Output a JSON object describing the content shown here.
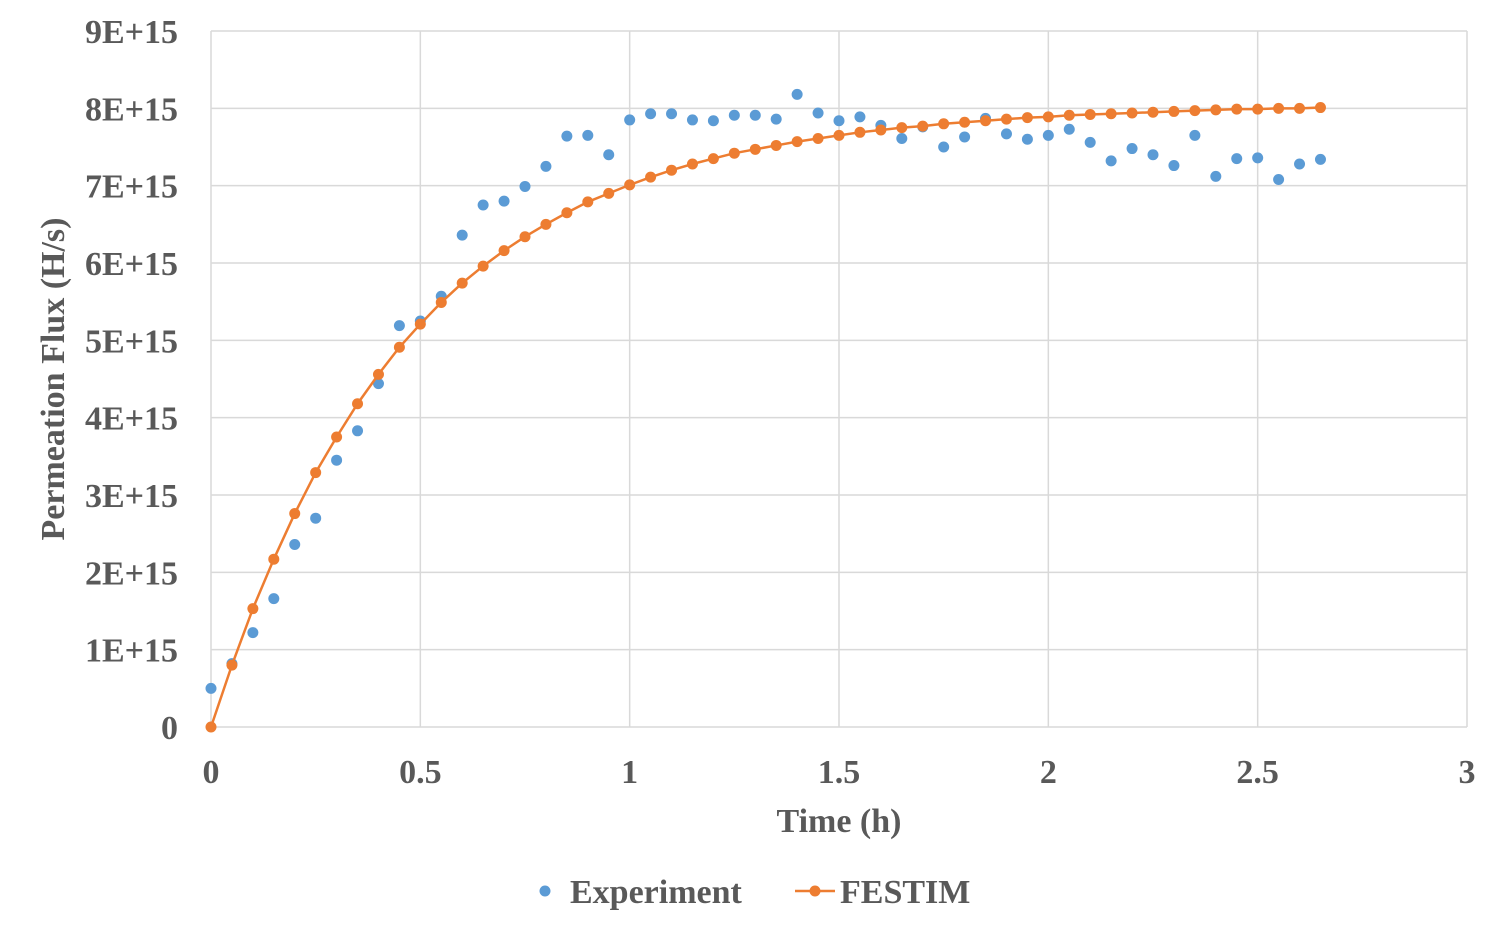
{
  "chart_data": {
    "type": "scatter",
    "title": "",
    "xlabel": "Time (h)",
    "ylabel": "Permeation Flux (H/s)",
    "xlim": [
      0,
      3
    ],
    "ylim": [
      0,
      9000000000000000.0
    ],
    "xticks": [
      0,
      0.5,
      1,
      1.5,
      2,
      2.5,
      3
    ],
    "xtick_labels": [
      "0",
      "0.5",
      "1",
      "1.5",
      "2",
      "2.5",
      "3"
    ],
    "yticks": [
      0,
      1000000000000000.0,
      2000000000000000.0,
      3000000000000000.0,
      4000000000000000.0,
      5000000000000000.0,
      6000000000000000.0,
      7000000000000000.0,
      8000000000000000.0,
      9000000000000000.0
    ],
    "ytick_labels": [
      "0",
      "1E+15",
      "2E+15",
      "3E+15",
      "4E+15",
      "5E+15",
      "6E+15",
      "7E+15",
      "8E+15",
      "9E+15"
    ],
    "grid": true,
    "legend_position": "bottom",
    "series": [
      {
        "name": "Experiment",
        "style": "markers",
        "color": "#5b9bd5",
        "x": [
          0,
          0.05,
          0.1,
          0.15,
          0.2,
          0.25,
          0.3,
          0.35,
          0.4,
          0.45,
          0.5,
          0.55,
          0.6,
          0.65,
          0.7,
          0.75,
          0.8,
          0.85,
          0.9,
          0.95,
          1.0,
          1.05,
          1.1,
          1.15,
          1.2,
          1.25,
          1.3,
          1.35,
          1.4,
          1.45,
          1.5,
          1.55,
          1.6,
          1.65,
          1.7,
          1.75,
          1.8,
          1.85,
          1.9,
          1.95,
          2.0,
          2.05,
          2.1,
          2.15,
          2.2,
          2.25,
          2.3,
          2.35,
          2.4,
          2.45,
          2.5,
          2.55,
          2.6,
          2.65
        ],
        "y": [
          500000000000000.0,
          820000000000000.0,
          1220000000000000.0,
          1660000000000000.0,
          2360000000000000.0,
          2700000000000000.0,
          3450000000000000.0,
          3830000000000000.0,
          4440000000000000.0,
          5190000000000000.0,
          5250000000000000.0,
          5570000000000000.0,
          6360000000000000.0,
          6750000000000000.0,
          6800000000000000.0,
          6990000000000000.0,
          7250000000000000.0,
          7640000000000000.0,
          7650000000000000.0,
          7400000000000000.0,
          7850000000000000.0,
          7930000000000000.0,
          7930000000000000.0,
          7850000000000000.0,
          7840000000000000.0,
          7910000000000000.0,
          7910000000000000.0,
          7860000000000000.0,
          8180000000000000.0,
          7940000000000000.0,
          7840000000000000.0,
          7890000000000000.0,
          7780000000000000.0,
          7610000000000000.0,
          7760000000000000.0,
          7500000000000000.0,
          7630000000000000.0,
          7870000000000000.0,
          7670000000000000.0,
          7600000000000000.0,
          7650000000000000.0,
          7730000000000000.0,
          7560000000000000.0,
          7320000000000000.0,
          7480000000000000.0,
          7400000000000000.0,
          7260000000000000.0,
          7650000000000000.0,
          7120000000000000.0,
          7350000000000000.0,
          7360000000000000.0,
          7080000000000000.0,
          7280000000000000.0,
          7340000000000000.0
        ]
      },
      {
        "name": "FESTIM",
        "style": "line-markers",
        "color": "#ed7d31",
        "x": [
          0,
          0.05,
          0.1,
          0.15,
          0.2,
          0.25,
          0.3,
          0.35,
          0.4,
          0.45,
          0.5,
          0.55,
          0.6,
          0.65,
          0.7,
          0.75,
          0.8,
          0.85,
          0.9,
          0.95,
          1.0,
          1.05,
          1.1,
          1.15,
          1.2,
          1.25,
          1.3,
          1.35,
          1.4,
          1.45,
          1.5,
          1.55,
          1.6,
          1.65,
          1.7,
          1.75,
          1.8,
          1.85,
          1.9,
          1.95,
          2.0,
          2.05,
          2.1,
          2.15,
          2.2,
          2.25,
          2.3,
          2.35,
          2.4,
          2.45,
          2.5,
          2.55,
          2.6,
          2.65
        ],
        "y": [
          0,
          800000000000000.0,
          1530000000000000.0,
          2170000000000000.0,
          2760000000000000.0,
          3290000000000000.0,
          3750000000000000.0,
          4180000000000000.0,
          4560000000000000.0,
          4910000000000000.0,
          5210000000000000.0,
          5490000000000000.0,
          5740000000000000.0,
          5960000000000000.0,
          6160000000000000.0,
          6340000000000000.0,
          6500000000000000.0,
          6650000000000000.0,
          6790000000000000.0,
          6900000000000000.0,
          7010000000000000.0,
          7110000000000000.0,
          7200000000000000.0,
          7280000000000000.0,
          7350000000000000.0,
          7420000000000000.0,
          7470000000000000.0,
          7520000000000000.0,
          7570000000000000.0,
          7610000000000000.0,
          7650000000000000.0,
          7690000000000000.0,
          7720000000000000.0,
          7750000000000000.0,
          7770000000000000.0,
          7800000000000000.0,
          7820000000000000.0,
          7840000000000000.0,
          7860000000000000.0,
          7880000000000000.0,
          7890000000000000.0,
          7910000000000000.0,
          7920000000000000.0,
          7930000000000000.0,
          7940000000000000.0,
          7950000000000000.0,
          7960000000000000.0,
          7970000000000000.0,
          7980000000000000.0,
          7990000000000000.0,
          7990000000000000.0,
          8000000000000000.0,
          8000000000000000.0,
          8010000000000000.0
        ]
      }
    ]
  }
}
